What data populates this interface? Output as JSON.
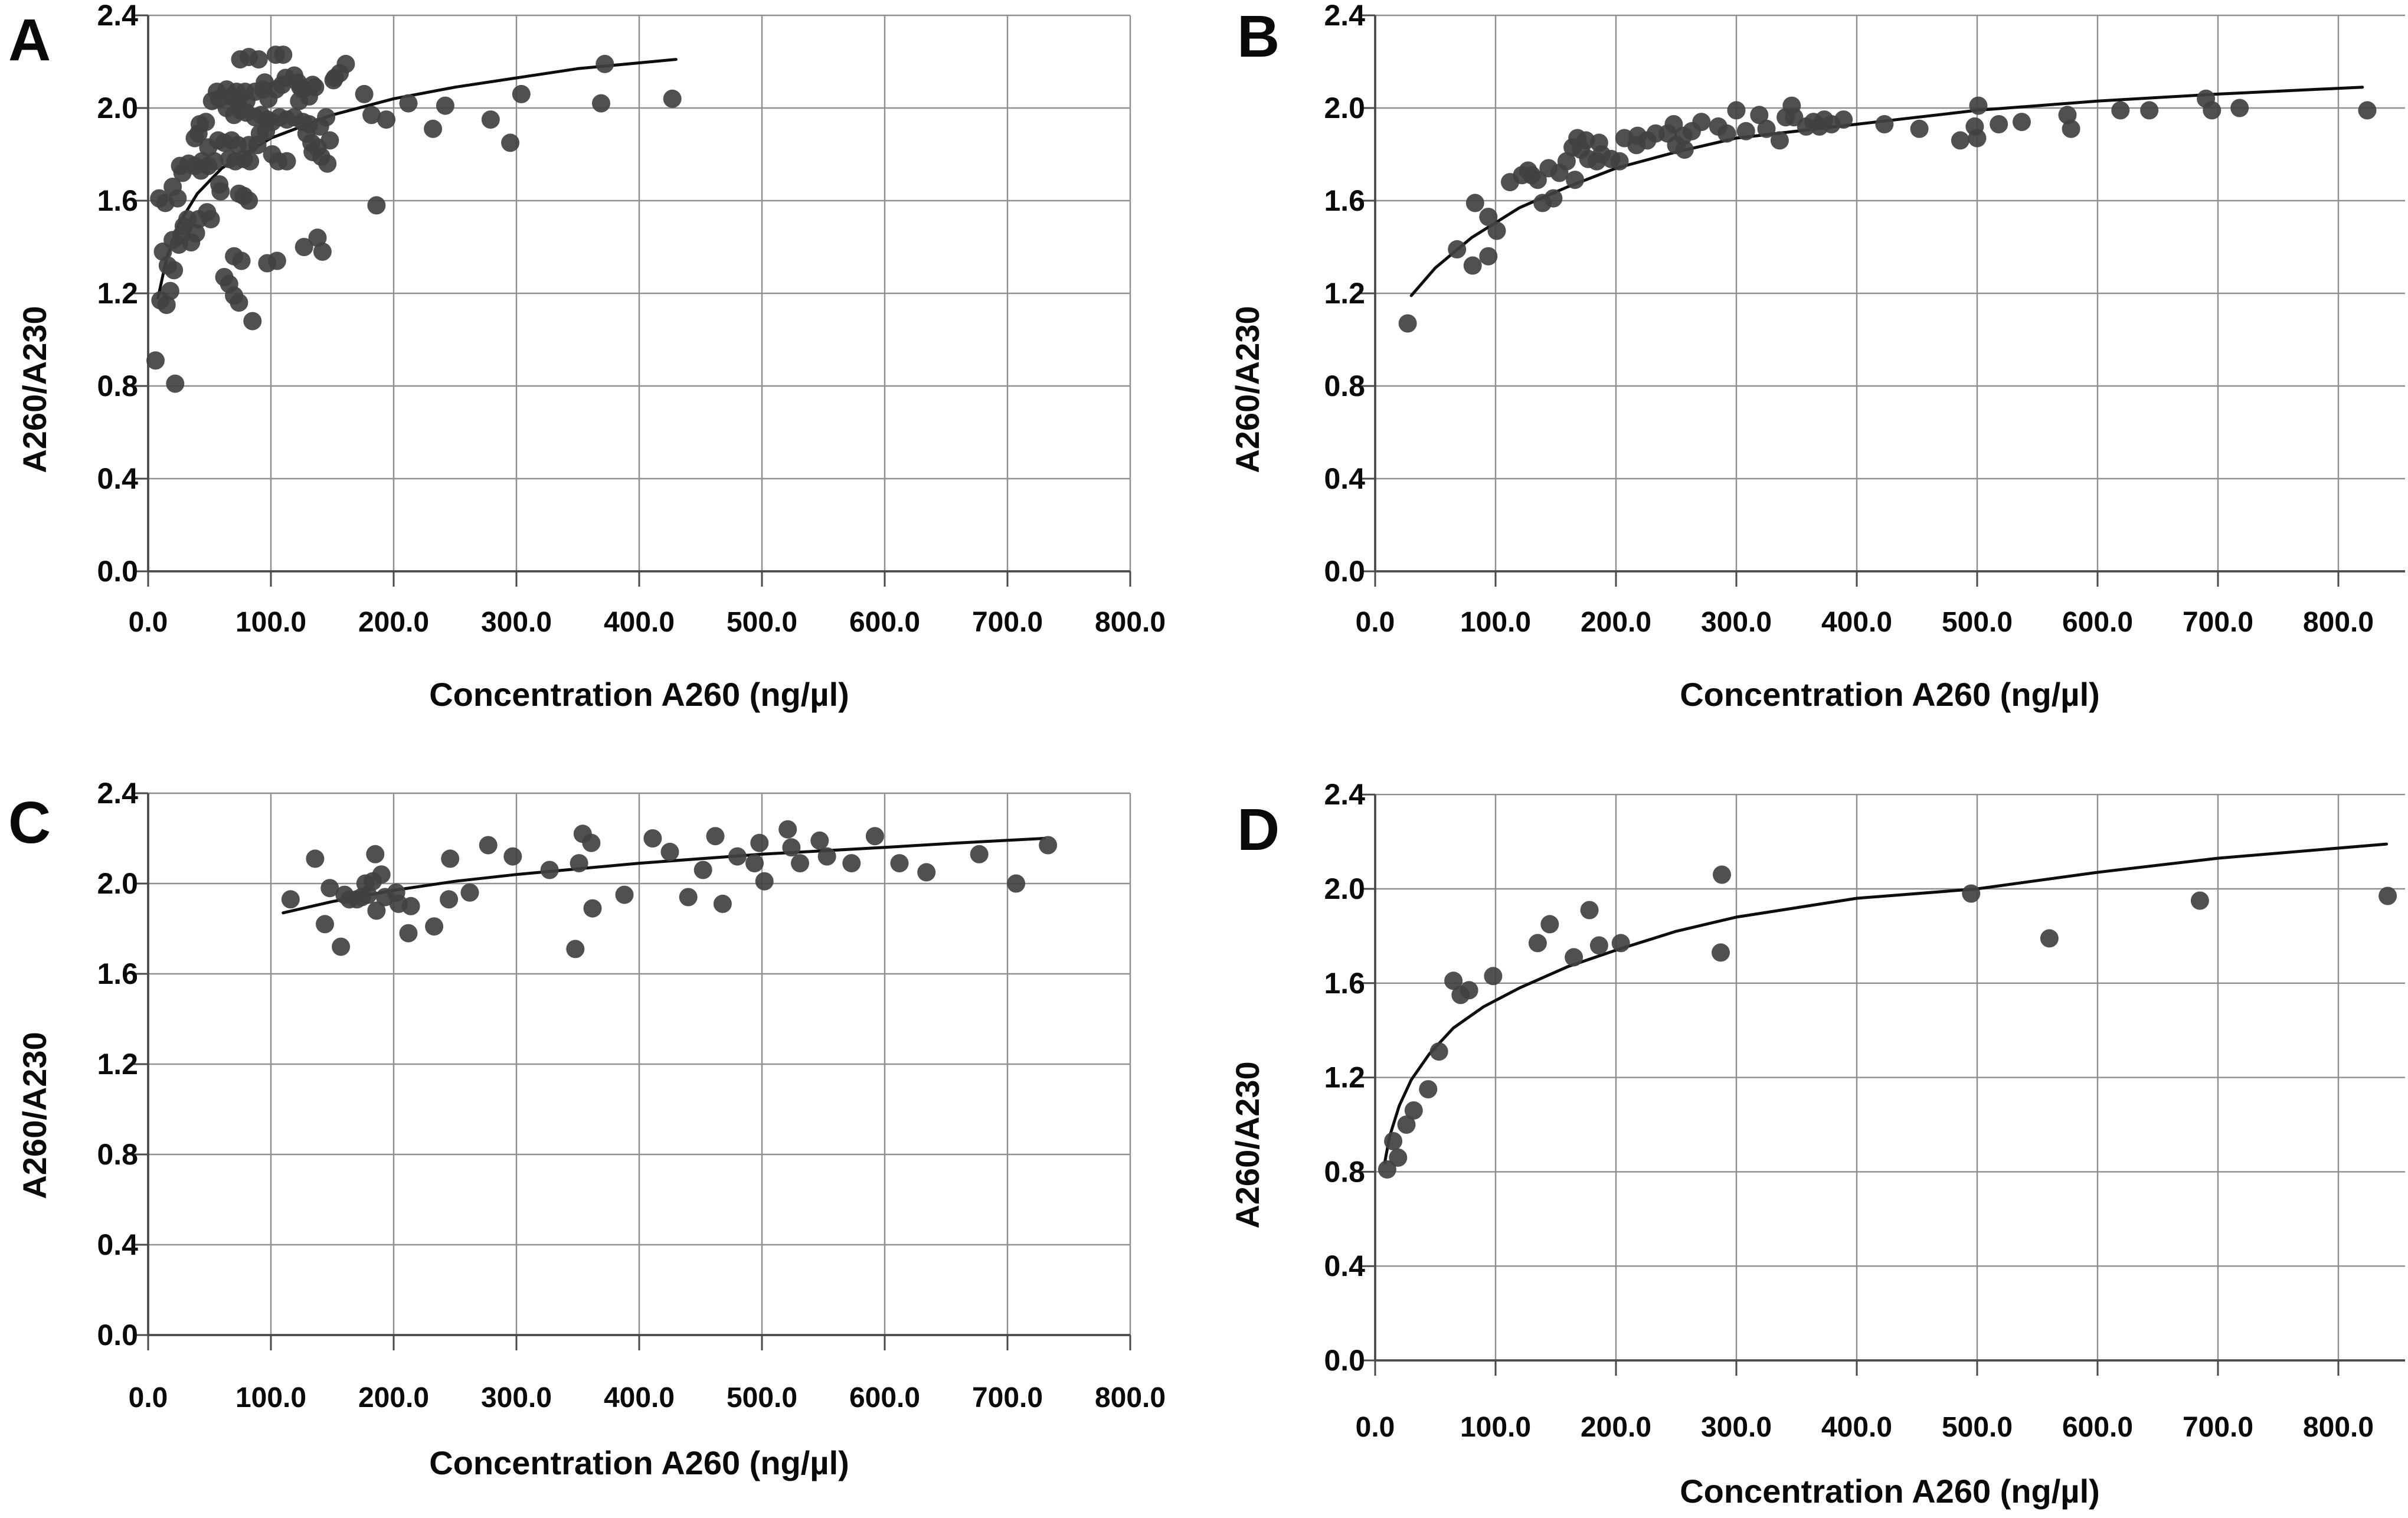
{
  "figure": {
    "background": "#ffffff",
    "marker_color": "#414141",
    "trend_color": "#0d0d0d",
    "grid_color": "#8f8f8f",
    "axis_color": "#4a4a4a"
  },
  "chart_data": [
    {
      "type": "scatter",
      "panel_label": "A",
      "x_axis_title": "Concentration A260 (ng/µl)",
      "y_axis_title": "A260/A230",
      "x_tick_labels": [
        "0.0",
        "100.0",
        "200.0",
        "300.0",
        "400.0",
        "500.0",
        "600.0",
        "700.0",
        "800.0"
      ],
      "y_tick_labels": [
        "0.0",
        "0.4",
        "0.8",
        "1.2",
        "1.6",
        "2.0",
        "2.4"
      ],
      "xlim": [
        0,
        800
      ],
      "ylim": [
        0,
        2.4
      ],
      "grid": true,
      "legend": "none",
      "points": [
        [
          6,
          0.91
        ],
        [
          22,
          0.81
        ],
        [
          85,
          1.08
        ],
        [
          10,
          1.17
        ],
        [
          15,
          1.15
        ],
        [
          18,
          1.21
        ],
        [
          70,
          1.19
        ],
        [
          74,
          1.16
        ],
        [
          62,
          1.27
        ],
        [
          66,
          1.24
        ],
        [
          12,
          1.38
        ],
        [
          16,
          1.32
        ],
        [
          21,
          1.3
        ],
        [
          20,
          1.43
        ],
        [
          25,
          1.41
        ],
        [
          27,
          1.45
        ],
        [
          32,
          1.52
        ],
        [
          35,
          1.42
        ],
        [
          39,
          1.46
        ],
        [
          29,
          1.49
        ],
        [
          41,
          1.52
        ],
        [
          70,
          1.36
        ],
        [
          76,
          1.34
        ],
        [
          97,
          1.33
        ],
        [
          105,
          1.34
        ],
        [
          127,
          1.4
        ],
        [
          138,
          1.44
        ],
        [
          142,
          1.38
        ],
        [
          9,
          1.61
        ],
        [
          14,
          1.59
        ],
        [
          20,
          1.66
        ],
        [
          24,
          1.61
        ],
        [
          48,
          1.55
        ],
        [
          51,
          1.52
        ],
        [
          58,
          1.67
        ],
        [
          59,
          1.64
        ],
        [
          74,
          1.63
        ],
        [
          78,
          1.62
        ],
        [
          82,
          1.6
        ],
        [
          186,
          1.58
        ],
        [
          26,
          1.75
        ],
        [
          28,
          1.72
        ],
        [
          33,
          1.76
        ],
        [
          38,
          1.75
        ],
        [
          44,
          1.77
        ],
        [
          49,
          1.75
        ],
        [
          54,
          1.77
        ],
        [
          43,
          1.73
        ],
        [
          66,
          1.78
        ],
        [
          71,
          1.77
        ],
        [
          78,
          1.78
        ],
        [
          83,
          1.77
        ],
        [
          101,
          1.8
        ],
        [
          106,
          1.77
        ],
        [
          113,
          1.77
        ],
        [
          134,
          1.81
        ],
        [
          141,
          1.79
        ],
        [
          146,
          1.76
        ],
        [
          38,
          1.87
        ],
        [
          41,
          1.89
        ],
        [
          49,
          1.83
        ],
        [
          57,
          1.86
        ],
        [
          62,
          1.85
        ],
        [
          68,
          1.86
        ],
        [
          73,
          1.84
        ],
        [
          82,
          1.84
        ],
        [
          89,
          1.84
        ],
        [
          91,
          1.89
        ],
        [
          96,
          1.9
        ],
        [
          42,
          1.93
        ],
        [
          47,
          1.94
        ],
        [
          70,
          1.97
        ],
        [
          75,
          1.99
        ],
        [
          80,
          1.98
        ],
        [
          87,
          1.96
        ],
        [
          92,
          1.97
        ],
        [
          97,
          1.95
        ],
        [
          101,
          1.94
        ],
        [
          107,
          1.96
        ],
        [
          113,
          1.95
        ],
        [
          119,
          1.96
        ],
        [
          126,
          1.94
        ],
        [
          131,
          1.93
        ],
        [
          129,
          1.89
        ],
        [
          133,
          1.85
        ],
        [
          138,
          1.83
        ],
        [
          140,
          1.92
        ],
        [
          145,
          1.96
        ],
        [
          148,
          1.86
        ],
        [
          182,
          1.97
        ],
        [
          194,
          1.95
        ],
        [
          232,
          1.91
        ],
        [
          279,
          1.95
        ],
        [
          295,
          1.85
        ],
        [
          52,
          2.03
        ],
        [
          58,
          2.04
        ],
        [
          56,
          2.07
        ],
        [
          64,
          2.08
        ],
        [
          72,
          2.07
        ],
        [
          64,
          2.0
        ],
        [
          68,
          2.05
        ],
        [
          73,
          2.03
        ],
        [
          79,
          2.07
        ],
        [
          87,
          2.07
        ],
        [
          94,
          2.08
        ],
        [
          98,
          2.04
        ],
        [
          80,
          2.03
        ],
        [
          104,
          2.08
        ],
        [
          109,
          2.1
        ],
        [
          123,
          2.03
        ],
        [
          126,
          2.08
        ],
        [
          112,
          2.13
        ],
        [
          95,
          2.11
        ],
        [
          124,
          2.09
        ],
        [
          134,
          2.1
        ],
        [
          131,
          2.05
        ],
        [
          136,
          2.09
        ],
        [
          152,
          2.13
        ],
        [
          176,
          2.06
        ],
        [
          212,
          2.02
        ],
        [
          242,
          2.01
        ],
        [
          304,
          2.06
        ],
        [
          369,
          2.02
        ],
        [
          427,
          2.04
        ],
        [
          75,
          2.21
        ],
        [
          82,
          2.22
        ],
        [
          90,
          2.21
        ],
        [
          104,
          2.23
        ],
        [
          110,
          2.23
        ],
        [
          119,
          2.14
        ],
        [
          122,
          2.11
        ],
        [
          151,
          2.12
        ],
        [
          156,
          2.15
        ],
        [
          161,
          2.19
        ],
        [
          372,
          2.19
        ]
      ],
      "trendline": [
        [
          8,
          1.18
        ],
        [
          15,
          1.35
        ],
        [
          25,
          1.5
        ],
        [
          40,
          1.63
        ],
        [
          60,
          1.74
        ],
        [
          100,
          1.87
        ],
        [
          150,
          1.97
        ],
        [
          200,
          2.04
        ],
        [
          250,
          2.09
        ],
        [
          300,
          2.13
        ],
        [
          350,
          2.17
        ],
        [
          430,
          2.21
        ]
      ]
    },
    {
      "type": "scatter",
      "panel_label": "B",
      "x_axis_title": "Concentration A260 (ng/µl)",
      "y_axis_title": "A260/A230",
      "x_tick_labels": [
        "0.0",
        "100.0",
        "200.0",
        "300.0",
        "400.0",
        "500.0",
        "600.0",
        "700.0",
        "800.0"
      ],
      "y_tick_labels": [
        "0.0",
        "0.4",
        "0.8",
        "1.2",
        "1.6",
        "2.0",
        "2.4"
      ],
      "xlim": [
        0,
        855
      ],
      "ylim": [
        0,
        2.4
      ],
      "grid": true,
      "legend": "none",
      "points": [
        [
          27,
          1.07
        ],
        [
          68,
          1.39
        ],
        [
          81,
          1.32
        ],
        [
          94,
          1.36
        ],
        [
          83,
          1.59
        ],
        [
          94,
          1.53
        ],
        [
          101,
          1.47
        ],
        [
          112,
          1.68
        ],
        [
          122,
          1.71
        ],
        [
          127,
          1.73
        ],
        [
          130,
          1.71
        ],
        [
          135,
          1.69
        ],
        [
          144,
          1.74
        ],
        [
          153,
          1.72
        ],
        [
          159,
          1.77
        ],
        [
          166,
          1.69
        ],
        [
          139,
          1.59
        ],
        [
          148,
          1.61
        ],
        [
          164,
          1.83
        ],
        [
          171,
          1.82
        ],
        [
          177,
          1.78
        ],
        [
          184,
          1.77
        ],
        [
          188,
          1.8
        ],
        [
          196,
          1.78
        ],
        [
          203,
          1.77
        ],
        [
          168,
          1.87
        ],
        [
          175,
          1.86
        ],
        [
          186,
          1.85
        ],
        [
          207,
          1.87
        ],
        [
          217,
          1.84
        ],
        [
          218,
          1.88
        ],
        [
          226,
          1.86
        ],
        [
          233,
          1.89
        ],
        [
          243,
          1.89
        ],
        [
          248,
          1.93
        ],
        [
          256,
          1.88
        ],
        [
          250,
          1.84
        ],
        [
          257,
          1.82
        ],
        [
          263,
          1.9
        ],
        [
          271,
          1.94
        ],
        [
          285,
          1.92
        ],
        [
          292,
          1.89
        ],
        [
          300,
          1.99
        ],
        [
          308,
          1.9
        ],
        [
          319,
          1.97
        ],
        [
          325,
          1.91
        ],
        [
          336,
          1.86
        ],
        [
          341,
          1.96
        ],
        [
          346,
          2.01
        ],
        [
          348,
          1.96
        ],
        [
          358,
          1.92
        ],
        [
          364,
          1.94
        ],
        [
          369,
          1.92
        ],
        [
          373,
          1.95
        ],
        [
          379,
          1.93
        ],
        [
          389,
          1.95
        ],
        [
          423,
          1.93
        ],
        [
          452,
          1.91
        ],
        [
          486,
          1.86
        ],
        [
          498,
          1.92
        ],
        [
          500,
          1.87
        ],
        [
          501,
          2.01
        ],
        [
          518,
          1.93
        ],
        [
          537,
          1.94
        ],
        [
          575,
          1.97
        ],
        [
          578,
          1.91
        ],
        [
          619,
          1.99
        ],
        [
          643,
          1.99
        ],
        [
          690,
          2.04
        ],
        [
          695,
          1.99
        ],
        [
          718,
          2.0
        ],
        [
          824,
          1.99
        ]
      ],
      "trendline": [
        [
          30,
          1.19
        ],
        [
          50,
          1.31
        ],
        [
          80,
          1.44
        ],
        [
          120,
          1.57
        ],
        [
          160,
          1.66
        ],
        [
          200,
          1.74
        ],
        [
          250,
          1.81
        ],
        [
          300,
          1.87
        ],
        [
          400,
          1.93
        ],
        [
          500,
          1.99
        ],
        [
          600,
          2.03
        ],
        [
          700,
          2.06
        ],
        [
          820,
          2.09
        ]
      ]
    },
    {
      "type": "scatter",
      "panel_label": "C",
      "x_axis_title": "Concentration A260 (ng/µl)",
      "y_axis_title": "A260/A230",
      "x_tick_labels": [
        "0.0",
        "100.0",
        "200.0",
        "300.0",
        "400.0",
        "500.0",
        "600.0",
        "700.0",
        "800.0"
      ],
      "y_tick_labels": [
        "0.0",
        "0.4",
        "0.8",
        "1.2",
        "1.6",
        "2.0",
        "2.4"
      ],
      "xlim": [
        0,
        800
      ],
      "ylim": [
        0,
        2.4
      ],
      "grid": true,
      "legend": "none",
      "points": [
        [
          116,
          1.93
        ],
        [
          136,
          2.11
        ],
        [
          144,
          1.82
        ],
        [
          148,
          1.98
        ],
        [
          157,
          1.72
        ],
        [
          160,
          1.95
        ],
        [
          164,
          1.93
        ],
        [
          170,
          1.93
        ],
        [
          174,
          1.94
        ],
        [
          179,
          1.95
        ],
        [
          177,
          2.0
        ],
        [
          183,
          2.01
        ],
        [
          185,
          2.13
        ],
        [
          190,
          2.04
        ],
        [
          193,
          1.94
        ],
        [
          186,
          1.88
        ],
        [
          202,
          1.96
        ],
        [
          204,
          1.91
        ],
        [
          214,
          1.9
        ],
        [
          212,
          1.78
        ],
        [
          233,
          1.81
        ],
        [
          245,
          1.93
        ],
        [
          262,
          1.96
        ],
        [
          246,
          2.11
        ],
        [
          277,
          2.17
        ],
        [
          297,
          2.12
        ],
        [
          327,
          2.06
        ],
        [
          348,
          1.71
        ],
        [
          354,
          2.22
        ],
        [
          361,
          2.18
        ],
        [
          351,
          2.09
        ],
        [
          362,
          1.89
        ],
        [
          388,
          1.95
        ],
        [
          411,
          2.2
        ],
        [
          425,
          2.14
        ],
        [
          440,
          1.94
        ],
        [
          452,
          2.06
        ],
        [
          462,
          2.21
        ],
        [
          468,
          1.91
        ],
        [
          480,
          2.12
        ],
        [
          494,
          2.09
        ],
        [
          498,
          2.18
        ],
        [
          502,
          2.01
        ],
        [
          521,
          2.24
        ],
        [
          524,
          2.16
        ],
        [
          531,
          2.09
        ],
        [
          547,
          2.19
        ],
        [
          553,
          2.12
        ],
        [
          573,
          2.09
        ],
        [
          592,
          2.21
        ],
        [
          612,
          2.09
        ],
        [
          634,
          2.05
        ],
        [
          677,
          2.13
        ],
        [
          707,
          2.0
        ],
        [
          733,
          2.17
        ]
      ],
      "trendline": [
        [
          110,
          1.87
        ],
        [
          150,
          1.92
        ],
        [
          200,
          1.97
        ],
        [
          250,
          2.01
        ],
        [
          300,
          2.04
        ],
        [
          400,
          2.09
        ],
        [
          500,
          2.13
        ],
        [
          600,
          2.16
        ],
        [
          660,
          2.18
        ],
        [
          730,
          2.2
        ]
      ]
    },
    {
      "type": "scatter",
      "panel_label": "D",
      "x_axis_title": "Concentration A260 (ng/µl)",
      "y_axis_title": "A260/A230",
      "x_tick_labels": [
        "0.0",
        "100.0",
        "200.0",
        "300.0",
        "400.0",
        "500.0",
        "600.0",
        "700.0",
        "800.0"
      ],
      "y_tick_labels": [
        "0.0",
        "0.4",
        "0.8",
        "1.2",
        "1.6",
        "2.0",
        "2.4"
      ],
      "xlim": [
        0,
        855
      ],
      "ylim": [
        0,
        2.4
      ],
      "grid": true,
      "legend": "none",
      "points": [
        [
          10,
          0.81
        ],
        [
          19,
          0.86
        ],
        [
          15,
          0.93
        ],
        [
          26,
          1.0
        ],
        [
          32,
          1.06
        ],
        [
          44,
          1.15
        ],
        [
          53,
          1.31
        ],
        [
          65,
          1.61
        ],
        [
          71,
          1.55
        ],
        [
          78,
          1.57
        ],
        [
          98,
          1.63
        ],
        [
          135,
          1.77
        ],
        [
          145,
          1.85
        ],
        [
          165,
          1.71
        ],
        [
          178,
          1.91
        ],
        [
          186,
          1.76
        ],
        [
          204,
          1.77
        ],
        [
          288,
          2.06
        ],
        [
          287,
          1.73
        ],
        [
          495,
          1.98
        ],
        [
          560,
          1.79
        ],
        [
          685,
          1.95
        ],
        [
          841,
          1.97
        ]
      ],
      "trendline": [
        [
          8,
          0.84
        ],
        [
          12,
          0.95
        ],
        [
          20,
          1.08
        ],
        [
          30,
          1.19
        ],
        [
          45,
          1.3
        ],
        [
          65,
          1.41
        ],
        [
          90,
          1.5
        ],
        [
          120,
          1.58
        ],
        [
          160,
          1.67
        ],
        [
          200,
          1.74
        ],
        [
          250,
          1.82
        ],
        [
          300,
          1.88
        ],
        [
          400,
          1.96
        ],
        [
          500,
          2.0
        ],
        [
          600,
          2.07
        ],
        [
          700,
          2.13
        ],
        [
          840,
          2.19
        ]
      ]
    }
  ]
}
